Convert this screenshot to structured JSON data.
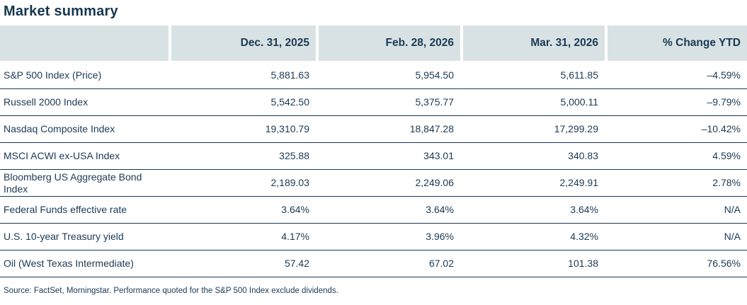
{
  "chart_data": {
    "type": "table",
    "title": "Market summary",
    "columns": [
      "",
      "Dec. 31, 2025",
      "Feb. 28, 2026",
      "Mar. 31, 2026",
      "% Change YTD"
    ],
    "rows": [
      {
        "label": "S&P 500 Index (Price)",
        "values": [
          "5,881.63",
          "5,954.50",
          "5,611.85",
          "–4.59%"
        ]
      },
      {
        "label": "Russell 2000 Index",
        "values": [
          "5,542.50",
          "5,375.77",
          "5,000.11",
          "–9.79%"
        ]
      },
      {
        "label": "Nasdaq Composite Index",
        "values": [
          "19,310.79",
          "18,847.28",
          "17,299.29",
          "–10.42%"
        ]
      },
      {
        "label": "MSCI ACWI ex-USA Index",
        "values": [
          "325.88",
          "343.01",
          "340.83",
          "4.59%"
        ]
      },
      {
        "label": "Bloomberg US Aggregate Bond Index",
        "values": [
          "2,189.03",
          "2,249.06",
          "2,249.91",
          "2.78%"
        ]
      },
      {
        "label": "Federal Funds effective rate",
        "values": [
          "3.64%",
          "3.64%",
          "3.64%",
          "N/A"
        ]
      },
      {
        "label": "U.S. 10-year Treasury yield",
        "values": [
          "4.17%",
          "3.96%",
          "4.32%",
          "N/A"
        ]
      },
      {
        "label": "Oil (West Texas Intermediate)",
        "values": [
          "57.42",
          "67.02",
          "101.38",
          "76.56%"
        ]
      }
    ],
    "source_note": "Source: FactSet, Morningstar. Performance quoted for the S&P 500 Index exclude dividends.",
    "layout": {
      "grid": "horizontal-row-rules-only",
      "header_background": "#d8e2e4",
      "text_color": "#1b3a54",
      "value_alignment": "right"
    }
  },
  "colors": {
    "text": "#1b3a54",
    "header_bg": "#d8e2e4",
    "row_rule": "#1b3a54",
    "background": "#ffffff"
  }
}
